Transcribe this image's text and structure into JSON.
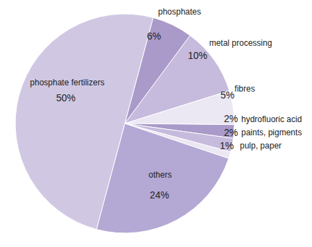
{
  "chart_data": {
    "type": "pie",
    "categories": [
      "phosphates",
      "metal processing",
      "fibres",
      "hydrofluoric acid",
      "paints, pigments",
      "pulp, paper",
      "others",
      "phosphate fertilizers"
    ],
    "values": [
      6,
      10,
      5,
      2,
      2,
      1,
      24,
      50
    ],
    "value_labels": [
      "6%",
      "10%",
      "5%",
      "2%",
      "2%",
      "1%",
      "24%",
      "50%"
    ],
    "colors": [
      "#a99ac9",
      "#c6badd",
      "#ebe7f3",
      "#a99ac9",
      "#c6badd",
      "#ebe7f3",
      "#b4a8d4",
      "#d0c8e3"
    ],
    "data_labels": true
  }
}
